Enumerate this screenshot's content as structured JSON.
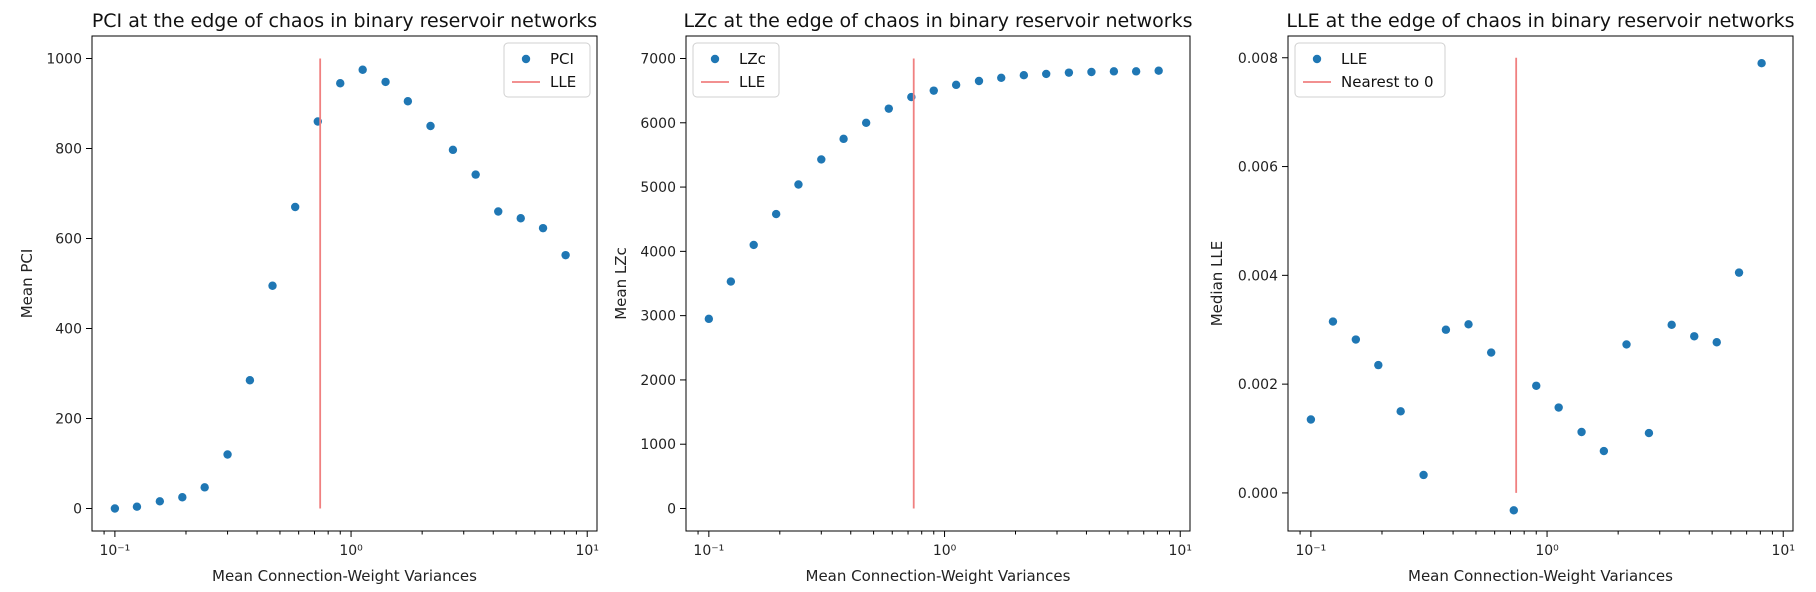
{
  "chart_data": [
    {
      "type": "scatter",
      "title": "PCI at the edge of chaos in binary reservoir networks",
      "xlabel": "Mean Connection-Weight Variances",
      "ylabel": "Mean PCI",
      "xscale": "log",
      "xlim": [
        0.08,
        11
      ],
      "ylim": [
        -50,
        1050
      ],
      "yticks": [
        0,
        200,
        400,
        600,
        800,
        1000
      ],
      "ytick_labels": [
        "0",
        "200",
        "400",
        "600",
        "800",
        "1000"
      ],
      "xticks": [
        0.1,
        1,
        10
      ],
      "xtick_labels": [
        "10⁻¹",
        "10⁰",
        "10¹"
      ],
      "legend_position": "top-right",
      "series": [
        {
          "name": "PCI",
          "kind": "points",
          "color": "#1f77b4",
          "x": [
            0.1,
            0.124,
            0.155,
            0.193,
            0.24,
            0.3,
            0.373,
            0.465,
            0.58,
            0.723,
            0.9,
            1.12,
            1.4,
            1.74,
            2.17,
            2.7,
            3.37,
            4.2,
            5.23,
            6.5,
            8.1
          ],
          "y": [
            0,
            4,
            16,
            25,
            47,
            120,
            285,
            495,
            670,
            860,
            945,
            975,
            948,
            905,
            850,
            797,
            742,
            660,
            645,
            623,
            563
          ]
        },
        {
          "name": "LLE",
          "kind": "vline",
          "color": "#f08080",
          "x": 0.74,
          "y_range": [
            0,
            1000
          ]
        }
      ]
    },
    {
      "type": "scatter",
      "title": "LZc at the edge of chaos in binary reservoir networks",
      "xlabel": "Mean Connection-Weight Variances",
      "ylabel": "Mean LZc",
      "xscale": "log",
      "xlim": [
        0.08,
        11
      ],
      "ylim": [
        -350,
        7350
      ],
      "yticks": [
        0,
        1000,
        2000,
        3000,
        4000,
        5000,
        6000,
        7000
      ],
      "ytick_labels": [
        "0",
        "1000",
        "2000",
        "3000",
        "4000",
        "5000",
        "6000",
        "7000"
      ],
      "xticks": [
        0.1,
        1,
        10
      ],
      "xtick_labels": [
        "10⁻¹",
        "10⁰",
        "10¹"
      ],
      "legend_position": "top-left",
      "series": [
        {
          "name": "LZc",
          "kind": "points",
          "color": "#1f77b4",
          "x": [
            0.1,
            0.124,
            0.155,
            0.193,
            0.24,
            0.3,
            0.373,
            0.465,
            0.58,
            0.723,
            0.9,
            1.12,
            1.4,
            1.74,
            2.17,
            2.7,
            3.37,
            4.2,
            5.23,
            6.5,
            8.1
          ],
          "y": [
            2950,
            3530,
            4100,
            4580,
            5040,
            5430,
            5750,
            6000,
            6220,
            6400,
            6500,
            6590,
            6650,
            6700,
            6740,
            6760,
            6780,
            6790,
            6800,
            6800,
            6810
          ]
        },
        {
          "name": "LLE",
          "kind": "vline",
          "color": "#f08080",
          "x": 0.74,
          "y_range": [
            0,
            7000
          ]
        }
      ]
    },
    {
      "type": "scatter",
      "title": "LLE at the edge of chaos in binary reservoir networks",
      "xlabel": "Mean Connection-Weight Variances",
      "ylabel": "Median LLE",
      "xscale": "log",
      "xlim": [
        0.08,
        11
      ],
      "ylim": [
        -0.0007,
        0.0084
      ],
      "yticks": [
        0,
        0.002,
        0.004,
        0.006,
        0.008
      ],
      "ytick_labels": [
        "0.000",
        "0.002",
        "0.004",
        "0.006",
        "0.008"
      ],
      "xticks": [
        0.1,
        1,
        10
      ],
      "xtick_labels": [
        "10⁻¹",
        "10⁰",
        "10¹"
      ],
      "legend_position": "top-left",
      "series": [
        {
          "name": "LLE",
          "kind": "points",
          "color": "#1f77b4",
          "x": [
            0.1,
            0.124,
            0.155,
            0.193,
            0.24,
            0.3,
            0.373,
            0.465,
            0.58,
            0.723,
            0.9,
            1.12,
            1.4,
            1.74,
            2.17,
            2.7,
            3.37,
            4.2,
            5.23,
            6.5,
            8.1
          ],
          "y": [
            0.00135,
            0.00315,
            0.00282,
            0.00235,
            0.0015,
            0.00033,
            0.003,
            0.0031,
            0.00258,
            -0.00032,
            0.00197,
            0.00157,
            0.00112,
            0.00077,
            0.00273,
            0.0011,
            0.00309,
            0.00288,
            0.00277,
            0.00405,
            0.0079
          ]
        },
        {
          "name": "Nearest to 0",
          "kind": "vline",
          "color": "#f08080",
          "x": 0.74,
          "y_range": [
            0,
            0.008
          ]
        }
      ]
    }
  ]
}
